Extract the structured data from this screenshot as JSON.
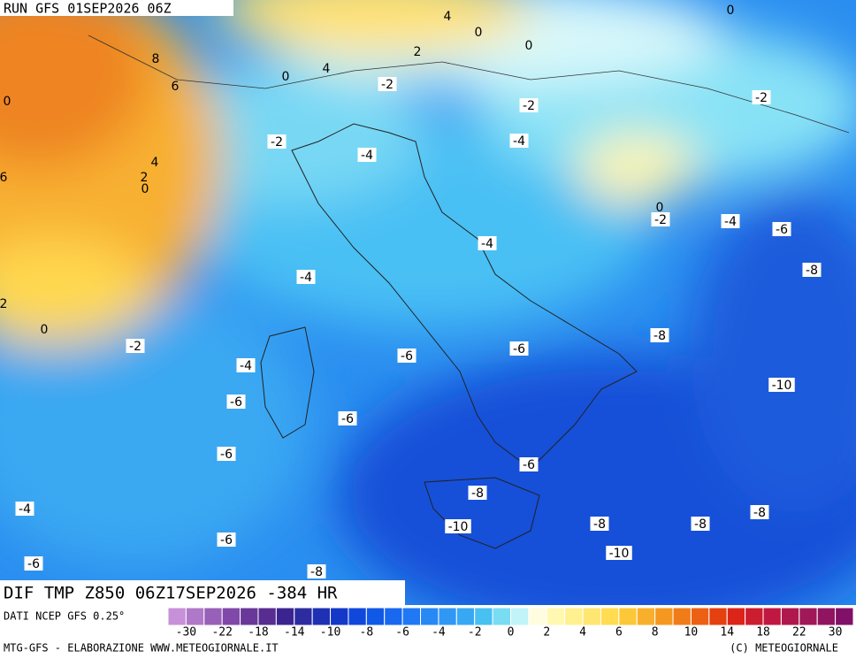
{
  "header": {
    "run": "RUN GFS 01SEP2026 06Z"
  },
  "map": {
    "field": "DIF TMP Z850 06Z17SEP2026 -384 HR",
    "contour_labels": [
      4,
      0,
      0,
      0,
      2,
      8,
      4,
      0,
      6,
      0,
      -2,
      -2,
      -2,
      -2,
      -4,
      -4,
      4,
      2,
      0,
      6,
      0,
      -2,
      -4,
      -6,
      -4,
      -8,
      -4,
      2,
      0,
      -2,
      -8,
      -6,
      -6,
      -4,
      -10,
      -6,
      -6,
      -6,
      -6,
      -8,
      -4,
      -8,
      -8,
      -8,
      -10,
      -6,
      -10,
      -6,
      -8
    ]
  },
  "colorbar": {
    "labels": [
      -30,
      -22,
      -18,
      -14,
      -10,
      -8,
      -6,
      -4,
      -2,
      0,
      2,
      4,
      6,
      8,
      10,
      14,
      18,
      22,
      30
    ],
    "colors": [
      "#c890d8",
      "#b078c8",
      "#9860b8",
      "#8048a8",
      "#6a3898",
      "#582c90",
      "#3c2490",
      "#2c2ca0",
      "#1e30b4",
      "#1438c8",
      "#1048dc",
      "#1058e6",
      "#1868f0",
      "#2078f4",
      "#2888f4",
      "#3098f4",
      "#38a8f4",
      "#48c0f2",
      "#78dcf2",
      "#c0f4f8",
      "#fffce0",
      "#fff8b0",
      "#fff090",
      "#ffe670",
      "#ffdc50",
      "#fcc838",
      "#f8b02c",
      "#f49820",
      "#f07c18",
      "#ec6014",
      "#e44010",
      "#dc2418",
      "#cc1c30",
      "#c01840",
      "#b0184c",
      "#a01858",
      "#901460",
      "#801068"
    ]
  },
  "footer": {
    "source": "DATI NCEP GFS 0.25°",
    "credit": "MTG-GFS - ELABORAZIONE WWW.METEOGIORNALE.IT",
    "copyright": "(C) METEOGIORNALE"
  }
}
